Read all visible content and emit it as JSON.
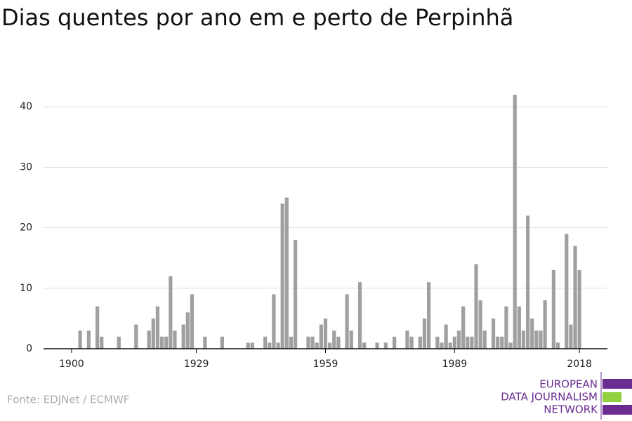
{
  "chart_data": {
    "type": "bar",
    "title": "Dias quentes por ano em e perto de Perpinhã",
    "source": "Fonte: EDJNet / ECMWF",
    "logo": [
      "EUROPEAN",
      "DATA JOURNALISM",
      "NETWORK"
    ],
    "color": "#a0a0a0",
    "grid": true,
    "x": [
      1900,
      1901,
      1902,
      1903,
      1904,
      1905,
      1906,
      1907,
      1908,
      1909,
      1910,
      1911,
      1912,
      1913,
      1914,
      1915,
      1916,
      1917,
      1918,
      1919,
      1920,
      1921,
      1922,
      1923,
      1924,
      1925,
      1926,
      1927,
      1928,
      1929,
      1930,
      1931,
      1932,
      1933,
      1934,
      1935,
      1936,
      1937,
      1938,
      1939,
      1940,
      1941,
      1942,
      1943,
      1944,
      1945,
      1946,
      1947,
      1948,
      1949,
      1950,
      1951,
      1952,
      1953,
      1954,
      1955,
      1956,
      1957,
      1958,
      1959,
      1960,
      1961,
      1962,
      1963,
      1964,
      1965,
      1966,
      1967,
      1968,
      1969,
      1970,
      1971,
      1972,
      1973,
      1974,
      1975,
      1976,
      1977,
      1978,
      1979,
      1980,
      1981,
      1982,
      1983,
      1984,
      1985,
      1986,
      1987,
      1988,
      1989,
      1990,
      1991,
      1992,
      1993,
      1994,
      1995,
      1996,
      1997,
      1998,
      1999,
      2000,
      2001,
      2002,
      2003,
      2004,
      2005,
      2006,
      2007,
      2008,
      2009,
      2010,
      2011,
      2012,
      2013,
      2014,
      2015,
      2016,
      2017,
      2018
    ],
    "values": [
      0,
      0,
      3,
      0,
      3,
      0,
      7,
      2,
      0,
      0,
      0,
      2,
      0,
      0,
      0,
      4,
      0,
      0,
      3,
      5,
      7,
      2,
      2,
      12,
      3,
      0,
      4,
      6,
      9,
      0,
      0,
      2,
      0,
      0,
      0,
      2,
      0,
      0,
      0,
      0,
      0,
      1,
      1,
      0,
      0,
      2,
      1,
      9,
      1,
      24,
      25,
      2,
      18,
      0,
      0,
      2,
      2,
      1,
      4,
      5,
      1,
      3,
      2,
      0,
      9,
      3,
      0,
      11,
      1,
      0,
      0,
      1,
      0,
      1,
      0,
      2,
      0,
      0,
      3,
      2,
      0,
      2,
      5,
      11,
      0,
      2,
      1,
      4,
      1,
      2,
      3,
      7,
      2,
      2,
      14,
      8,
      3,
      0,
      5,
      2,
      2,
      7,
      1,
      42,
      7,
      3,
      22,
      5,
      3,
      3,
      8,
      0,
      13,
      1,
      0,
      19,
      4,
      17,
      13
    ],
    "xlim": [
      1893.5,
      2024.5
    ],
    "xticks": [
      1900,
      1929,
      1959,
      1989,
      2018
    ],
    "ylim": [
      0,
      42
    ],
    "yticks": [
      0,
      10,
      20,
      30,
      40
    ]
  }
}
